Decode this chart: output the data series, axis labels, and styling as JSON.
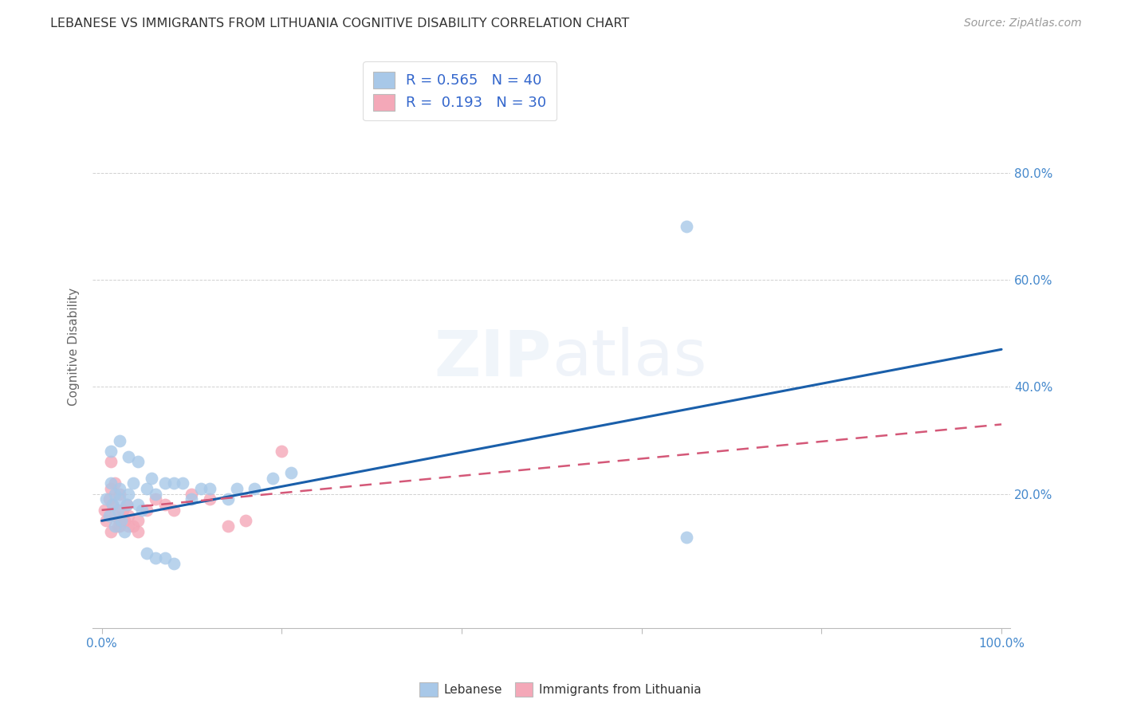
{
  "title": "LEBANESE VS IMMIGRANTS FROM LITHUANIA COGNITIVE DISABILITY CORRELATION CHART",
  "source": "Source: ZipAtlas.com",
  "ylabel": "Cognitive Disability",
  "watermark": "ZIPatlas",
  "r_blue": 0.565,
  "n_blue": 40,
  "r_pink": 0.193,
  "n_pink": 30,
  "xlim": [
    0,
    100
  ],
  "ylim": [
    0,
    100
  ],
  "yticks": [
    20,
    40,
    60,
    80
  ],
  "xticks": [
    0,
    20,
    40,
    60,
    80,
    100
  ],
  "blue_color": "#a8c8e8",
  "pink_color": "#f4a8b8",
  "blue_line_color": "#1a5faa",
  "pink_line_color": "#d45878",
  "grid_color": "#cccccc",
  "title_color": "#333333",
  "axis_label_color": "#666666",
  "tick_label_color": "#4488cc",
  "source_color": "#999999",
  "background_color": "#ffffff",
  "blue_line_x0": 0,
  "blue_line_y0": 15,
  "blue_line_x1": 100,
  "blue_line_y1": 47,
  "pink_line_x0": 0,
  "pink_line_y0": 17,
  "pink_line_x1": 100,
  "pink_line_y1": 33,
  "blue_x": [
    0.5,
    0.8,
    1.0,
    1.2,
    1.5,
    1.5,
    1.8,
    2.0,
    2.0,
    2.2,
    2.5,
    2.8,
    3.0,
    3.5,
    4.0,
    4.5,
    5.0,
    5.5,
    6.0,
    7.0,
    8.0,
    9.0,
    10.0,
    11.0,
    12.0,
    14.0,
    15.0,
    17.0,
    19.0,
    21.0,
    1.0,
    2.0,
    3.0,
    4.0,
    5.0,
    6.0,
    7.0,
    8.0,
    65.0,
    65.0
  ],
  "blue_y": [
    19,
    16,
    22,
    18,
    14,
    20,
    17,
    21,
    19,
    15,
    13,
    18,
    20,
    22,
    18,
    17,
    21,
    23,
    20,
    22,
    22,
    22,
    19,
    21,
    21,
    19,
    21,
    21,
    23,
    24,
    28,
    30,
    27,
    26,
    9,
    8,
    8,
    7,
    70,
    12
  ],
  "pink_x": [
    0.3,
    0.5,
    0.8,
    1.0,
    1.2,
    1.5,
    1.8,
    2.0,
    2.3,
    2.5,
    2.8,
    3.0,
    3.5,
    4.0,
    5.0,
    6.0,
    7.0,
    8.0,
    10.0,
    12.0,
    1.0,
    1.5,
    2.0,
    3.0,
    4.0,
    14.0,
    16.0,
    20.0,
    1.0,
    2.0
  ],
  "pink_y": [
    17,
    15,
    19,
    13,
    18,
    16,
    14,
    20,
    17,
    15,
    18,
    16,
    14,
    15,
    17,
    19,
    18,
    17,
    20,
    19,
    21,
    22,
    15,
    14,
    13,
    14,
    15,
    28,
    26,
    14
  ]
}
